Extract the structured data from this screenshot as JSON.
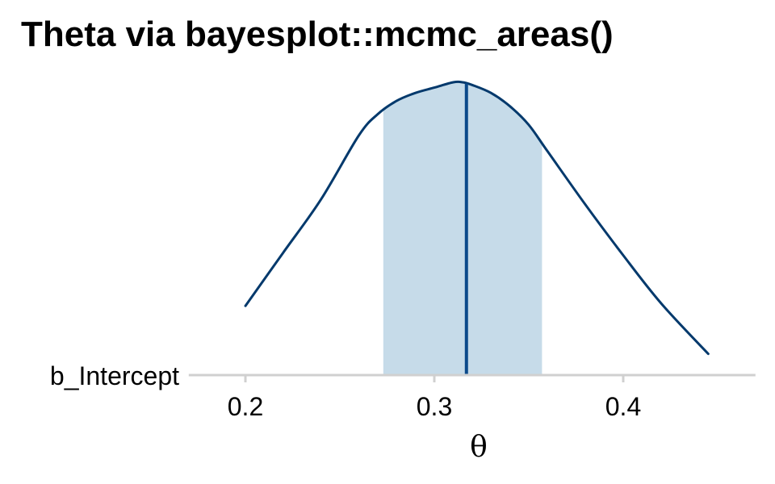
{
  "chart_data": {
    "type": "area",
    "title": "Theta via bayesplot::mcmc_areas()",
    "xlabel": "θ",
    "ylabel": "",
    "parameter": "b_Intercept",
    "xlim": [
      0.17,
      0.47
    ],
    "x_ticks": [
      0.2,
      0.3,
      0.4
    ],
    "x_tick_labels": [
      "0.2",
      "0.3",
      "0.4"
    ],
    "density": {
      "x": [
        0.2,
        0.22,
        0.24,
        0.26,
        0.27,
        0.28,
        0.29,
        0.3,
        0.31,
        0.315,
        0.32,
        0.33,
        0.34,
        0.35,
        0.36,
        0.38,
        0.4,
        0.42,
        0.445
      ],
      "y": [
        0.26,
        0.46,
        0.66,
        0.9,
        0.98,
        1.03,
        1.06,
        1.08,
        1.1,
        1.1,
        1.09,
        1.06,
        1.01,
        0.94,
        0.84,
        0.64,
        0.45,
        0.27,
        0.08
      ]
    },
    "interval": {
      "low": 0.273,
      "high": 0.357
    },
    "point_estimate": 0.317,
    "grid": false,
    "colors": {
      "outline": "#03396c",
      "interval_fill": "#c6dbe9",
      "point_line": "#0c4a8a",
      "axis": "#d0d0d0"
    }
  }
}
